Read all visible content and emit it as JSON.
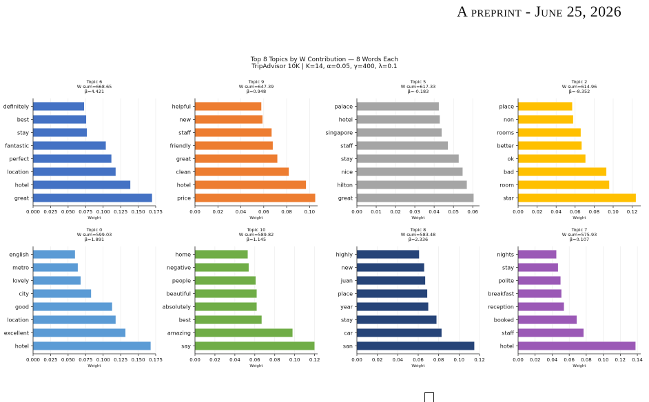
{
  "header": {
    "prefix": "A preprint - ",
    "date": "June 25, 2026"
  },
  "figure": {
    "title_line1": "Top 8 Topics by W Contribution — 8 Words Each",
    "title_line2": "TripAdvisor 10K | K=14, α=0.05, γ=400, λ=0.1"
  },
  "chart_data": [
    {
      "type": "bar",
      "orientation": "horizontal",
      "title": "Topic 6",
      "subtitle": "W sum=668.65",
      "beta": "β=4.421",
      "xlabel": "Weight",
      "color": "#4472c4",
      "categories": [
        "great",
        "hotel",
        "location",
        "perfect",
        "fantastic",
        "stay",
        "best",
        "definitely"
      ],
      "values": [
        0.17,
        0.139,
        0.118,
        0.112,
        0.104,
        0.077,
        0.076,
        0.073
      ],
      "xlim": [
        0,
        0.175
      ],
      "xticks": [
        "0.000",
        "0.025",
        "0.050",
        "0.075",
        "0.100",
        "0.125",
        "0.150",
        "0.175"
      ],
      "xtick_values": [
        0,
        0.025,
        0.05,
        0.075,
        0.1,
        0.125,
        0.15,
        0.175
      ]
    },
    {
      "type": "bar",
      "orientation": "horizontal",
      "title": "Topic 9",
      "subtitle": "W sum=647.39",
      "beta": "β=0.948",
      "xlabel": "Weight",
      "color": "#ed7d31",
      "categories": [
        "price",
        "hotel",
        "clean",
        "great",
        "friendly",
        "staff",
        "new",
        "helpful"
      ],
      "values": [
        0.105,
        0.097,
        0.082,
        0.072,
        0.068,
        0.067,
        0.059,
        0.058
      ],
      "xlim": [
        0,
        0.107
      ],
      "xticks": [
        "0.00",
        "0.02",
        "0.04",
        "0.06",
        "0.08",
        "0.10"
      ],
      "xtick_values": [
        0,
        0.02,
        0.04,
        0.06,
        0.08,
        0.1
      ]
    },
    {
      "type": "bar",
      "orientation": "horizontal",
      "title": "Topic 5",
      "subtitle": "W sum=617.33",
      "beta": "β=-0.183",
      "xlabel": "Weight",
      "color": "#a5a5a5",
      "categories": [
        "great",
        "hilton",
        "nice",
        "stay",
        "staff",
        "singapore",
        "hotel",
        "palace"
      ],
      "values": [
        0.0605,
        0.057,
        0.0548,
        0.0528,
        0.0472,
        0.044,
        0.043,
        0.0425
      ],
      "xlim": [
        0,
        0.0635
      ],
      "xticks": [
        "0.00",
        "0.01",
        "0.02",
        "0.03",
        "0.04",
        "0.05",
        "0.06"
      ],
      "xtick_values": [
        0,
        0.01,
        0.02,
        0.03,
        0.04,
        0.05,
        0.06
      ]
    },
    {
      "type": "bar",
      "orientation": "horizontal",
      "title": "Topic 2",
      "subtitle": "W sum=614.96",
      "beta": "β=-8.352",
      "xlabel": "Weight",
      "color": "#ffc000",
      "categories": [
        "star",
        "room",
        "bad",
        "ok",
        "better",
        "rooms",
        "non",
        "place"
      ],
      "values": [
        0.124,
        0.096,
        0.093,
        0.071,
        0.067,
        0.066,
        0.058,
        0.057
      ],
      "xlim": [
        0,
        0.129
      ],
      "xticks": [
        "0.00",
        "0.02",
        "0.04",
        "0.06",
        "0.08",
        "0.10",
        "0.12"
      ],
      "xtick_values": [
        0,
        0.02,
        0.04,
        0.06,
        0.08,
        0.1,
        0.12
      ]
    },
    {
      "type": "bar",
      "orientation": "horizontal",
      "title": "Topic 0",
      "subtitle": "W sum=599.03",
      "beta": "β=1.891",
      "xlabel": "Weight",
      "color": "#5b9bd5",
      "categories": [
        "hotel",
        "excellent",
        "location",
        "good",
        "city",
        "lovely",
        "metro",
        "english"
      ],
      "values": [
        0.168,
        0.132,
        0.118,
        0.113,
        0.083,
        0.068,
        0.064,
        0.06
      ],
      "xlim": [
        0,
        0.175
      ],
      "xticks": [
        "0.000",
        "0.025",
        "0.050",
        "0.075",
        "0.100",
        "0.125",
        "0.150",
        "0.175"
      ],
      "xtick_values": [
        0,
        0.025,
        0.05,
        0.075,
        0.1,
        0.125,
        0.15,
        0.175
      ]
    },
    {
      "type": "bar",
      "orientation": "horizontal",
      "title": "Topic 10",
      "subtitle": "W sum=589.82",
      "beta": "β=1.145",
      "xlabel": "Weight",
      "color": "#70ad47",
      "categories": [
        "say",
        "amazing",
        "best",
        "absolutely",
        "beautiful",
        "people",
        "negative",
        "home"
      ],
      "values": [
        0.12,
        0.098,
        0.067,
        0.062,
        0.062,
        0.061,
        0.054,
        0.053
      ],
      "xlim": [
        0,
        0.123
      ],
      "xticks": [
        "0.00",
        "0.02",
        "0.04",
        "0.06",
        "0.08",
        "0.10",
        "0.12"
      ],
      "xtick_values": [
        0,
        0.02,
        0.04,
        0.06,
        0.08,
        0.1,
        0.12
      ]
    },
    {
      "type": "bar",
      "orientation": "horizontal",
      "title": "Topic 8",
      "subtitle": "W sum=583.48",
      "beta": "β=2.336",
      "xlabel": "Weight",
      "color": "#264478",
      "categories": [
        "san",
        "car",
        "stay",
        "year",
        "place",
        "juan",
        "new",
        "highly"
      ],
      "values": [
        0.115,
        0.083,
        0.078,
        0.07,
        0.069,
        0.067,
        0.066,
        0.061
      ],
      "xlim": [
        0,
        0.12
      ],
      "xticks": [
        "0.00",
        "0.02",
        "0.04",
        "0.06",
        "0.08",
        "0.10",
        "0.12"
      ],
      "xtick_values": [
        0,
        0.02,
        0.04,
        0.06,
        0.08,
        0.1,
        0.12
      ]
    },
    {
      "type": "bar",
      "orientation": "horizontal",
      "title": "Topic 7",
      "subtitle": "W sum=575.93",
      "beta": "β=0.107",
      "xlabel": "Weight",
      "color": "#9b59b6",
      "categories": [
        "hotel",
        "staff",
        "booked",
        "reception",
        "breakfast",
        "polite",
        "stay",
        "nights"
      ],
      "values": [
        0.138,
        0.077,
        0.069,
        0.054,
        0.051,
        0.05,
        0.047,
        0.045
      ],
      "xlim": [
        0,
        0.144
      ],
      "xticks": [
        "0.00",
        "0.02",
        "0.04",
        "0.06",
        "0.08",
        "0.10",
        "0.12",
        "0.14"
      ],
      "xtick_values": [
        0,
        0.02,
        0.04,
        0.06,
        0.08,
        0.1,
        0.12,
        0.14
      ]
    }
  ]
}
